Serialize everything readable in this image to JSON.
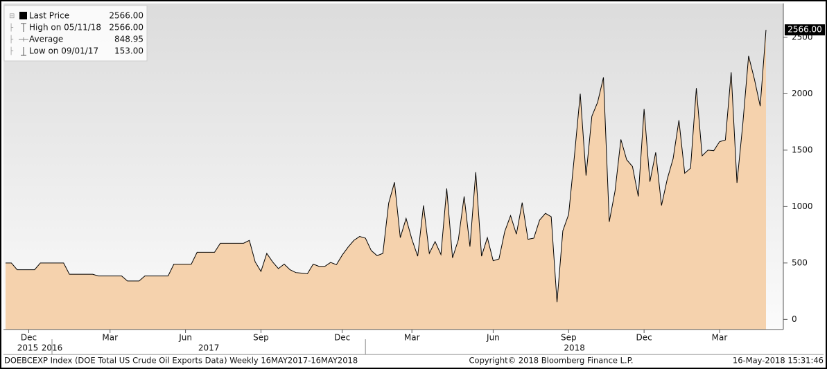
{
  "chart_data": {
    "type": "area",
    "categories": [
      null,
      null,
      null,
      null,
      "Dec",
      null,
      null,
      null,
      null,
      null,
      null,
      null,
      null,
      null,
      null,
      null,
      null,
      null,
      "Mar",
      null,
      null,
      null,
      null,
      null,
      null,
      null,
      null,
      null,
      null,
      null,
      null,
      "Jun",
      null,
      null,
      null,
      null,
      null,
      null,
      null,
      null,
      null,
      null,
      null,
      null,
      "Sep",
      null,
      null,
      null,
      null,
      null,
      null,
      null,
      null,
      null,
      null,
      null,
      null,
      null,
      "Dec",
      null,
      null,
      null,
      null,
      null,
      null,
      null,
      null,
      null,
      null,
      null,
      "Mar",
      null,
      null,
      null,
      null,
      null,
      null,
      null,
      null,
      null,
      null,
      null,
      null,
      null,
      "Jun",
      null,
      null,
      null,
      null,
      null,
      null,
      null,
      null,
      null,
      null,
      null,
      null,
      "Sep",
      null,
      null,
      null,
      null,
      null,
      null,
      null,
      null,
      null,
      null,
      null,
      null,
      "Dec",
      null,
      null,
      null,
      null,
      null,
      null,
      null,
      null,
      null,
      null,
      null,
      null,
      "Mar",
      null,
      null,
      null,
      null,
      null,
      null,
      null,
      null
    ],
    "years": [
      "2015",
      "2016",
      "2017",
      "2018"
    ],
    "series": [
      {
        "name": "Last Price",
        "color": "#000000",
        "fill": "#f5d2ad",
        "values": [
          500,
          500,
          440,
          440,
          440,
          440,
          500,
          500,
          500,
          500,
          500,
          400,
          400,
          400,
          400,
          400,
          385,
          385,
          385,
          385,
          385,
          340,
          340,
          340,
          385,
          385,
          385,
          385,
          385,
          490,
          490,
          490,
          490,
          595,
          595,
          595,
          595,
          675,
          675,
          675,
          675,
          675,
          700,
          510,
          425,
          585,
          510,
          450,
          490,
          440,
          415,
          410,
          405,
          490,
          470,
          470,
          505,
          485,
          570,
          640,
          700,
          735,
          720,
          610,
          565,
          585,
          1030,
          1215,
          725,
          895,
          710,
          560,
          1010,
          585,
          690,
          575,
          1160,
          545,
          705,
          1090,
          645,
          1305,
          560,
          725,
          520,
          535,
          780,
          920,
          755,
          1035,
          710,
          720,
          880,
          940,
          910,
          153,
          785,
          930,
          1450,
          2000,
          1275,
          1800,
          1925,
          2145,
          865,
          1140,
          1595,
          1415,
          1355,
          1090,
          1865,
          1220,
          1480,
          1010,
          1245,
          1425,
          1765,
          1295,
          1340,
          2050,
          1450,
          1500,
          1495,
          1575,
          1590,
          2190,
          1210,
          1730,
          2335,
          2130,
          1890,
          2566
        ]
      }
    ],
    "last_value_label": "2566.00",
    "stats": [
      {
        "label": "High on 05/11/18",
        "value_label": "2566.00"
      },
      {
        "label": "Average",
        "value_label": "848.95"
      },
      {
        "label": "Low on 09/01/17",
        "value_label": "153.00"
      }
    ],
    "ylim": [
      -90,
      2800
    ],
    "yticks": [
      0,
      500,
      1000,
      1500,
      2000,
      2500
    ],
    "footer": {
      "source": "DOEBCEXP Index (DOE Total US Crude Oil Exports Data)  Weekly 16MAY2017-16MAY2018",
      "copyright": "Copyright© 2018 Bloomberg Finance L.P.",
      "timestamp": "16-May-2018 15:31:46"
    }
  }
}
